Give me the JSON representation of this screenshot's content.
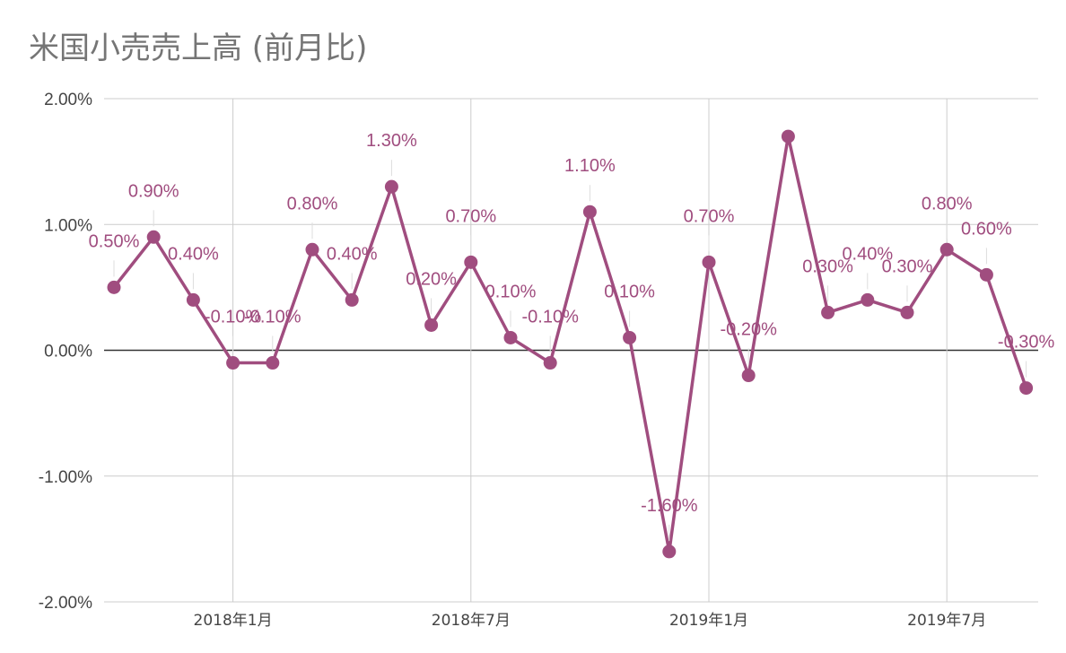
{
  "chart_data": {
    "type": "line",
    "title": "米国小売売上高 (前月比)",
    "xlabel": "",
    "ylabel": "",
    "ylim": [
      -2,
      2
    ],
    "yticks": [
      2,
      1,
      0,
      -1,
      -2
    ],
    "ytick_labels": [
      "2.00%",
      "1.00%",
      "0.00%",
      "-1.00%",
      "-2.00%"
    ],
    "x_tick_labels": [
      "2018年1月",
      "2018年7月",
      "2019年1月",
      "2019年7月"
    ],
    "grid": true,
    "legend": "none",
    "series": [
      {
        "color": "#a04d7f",
        "x": [
          "2017-10",
          "2017-11",
          "2017-12",
          "2018-01",
          "2018-02",
          "2018-03",
          "2018-04",
          "2018-05",
          "2018-06",
          "2018-07",
          "2018-08",
          "2018-09",
          "2018-10",
          "2018-11",
          "2018-12",
          "2019-01",
          "2019-02",
          "2019-03",
          "2019-04",
          "2019-05",
          "2019-06",
          "2019-07",
          "2019-08",
          "2019-09"
        ],
        "values": [
          0.5,
          0.9,
          0.4,
          -0.1,
          -0.1,
          0.8,
          0.4,
          1.3,
          0.2,
          0.7,
          0.1,
          -0.1,
          1.1,
          0.1,
          -1.6,
          0.7,
          -0.2,
          1.7,
          0.3,
          0.4,
          0.3,
          0.8,
          0.6,
          -0.3
        ],
        "labels": [
          "0.50%",
          "0.90%",
          "0.40%",
          "-0.10%",
          "-0.10%",
          "0.80%",
          "0.40%",
          "1.30%",
          "0.20%",
          "0.70%",
          "0.10%",
          "-0.10%",
          "1.10%",
          "0.10%",
          "-1.60%",
          "0.70%",
          "-0.20%",
          "",
          "0.30%",
          "0.40%",
          "0.30%",
          "0.80%",
          "0.60%",
          "-0.30%"
        ]
      }
    ]
  }
}
